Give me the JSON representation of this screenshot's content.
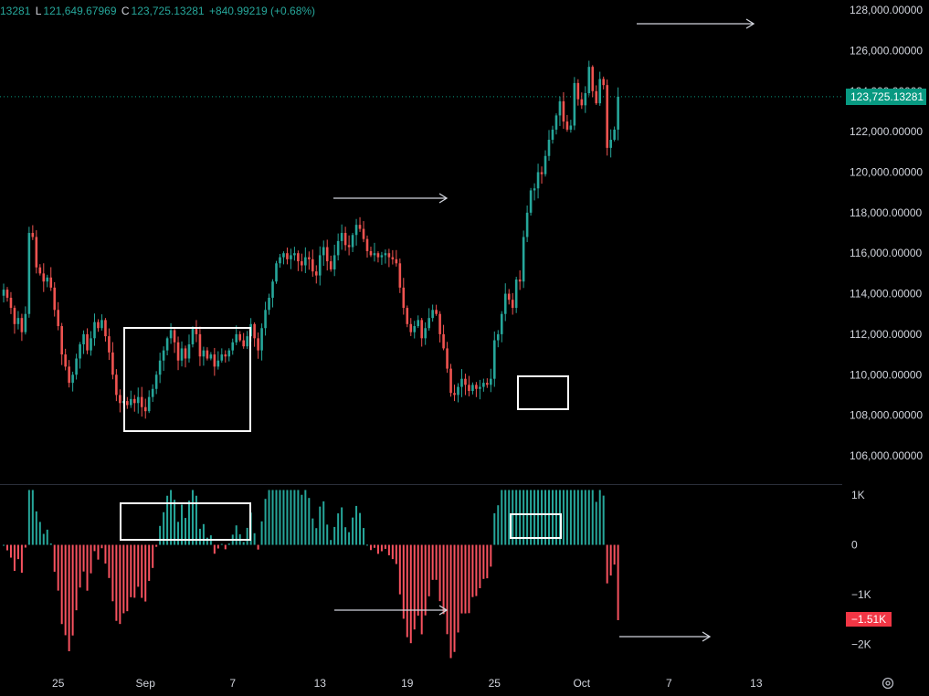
{
  "legend": {
    "open_partial": "13281",
    "low_label": "L",
    "low": "121,649.67969",
    "close_label": "C",
    "close": "123,725.13281",
    "change": "+840.99219 (+0.68%)"
  },
  "last_price_label": "123,725.13281",
  "oscillator_last_label": "−1.51K",
  "colors": {
    "up": "#26a69a",
    "down": "#ef5350",
    "osc_up": "#26a69a",
    "osc_down": "#f7525f",
    "price_tag": "#089981",
    "osc_tag": "#f23645"
  },
  "icons": {
    "settings": "gear-icon"
  },
  "chart_data": [
    {
      "type": "candlestick",
      "title": "",
      "ylim": [
        104600,
        128500
      ],
      "y_ticks": [
        106000,
        108000,
        110000,
        112000,
        114000,
        116000,
        118000,
        120000,
        122000,
        124000,
        126000,
        128000
      ],
      "y_tick_labels": [
        "106,000.00000",
        "108,000.00000",
        "110,000.00000",
        "112,000.00000",
        "114,000.00000",
        "116,000.00000",
        "118,000.00000",
        "120,000.00000",
        "122,000.00000",
        "124,000.00000",
        "126,000.00000",
        "128,000.00000"
      ],
      "x_tick_labels": [
        "25",
        "Sep",
        "7",
        "13",
        "19",
        "25",
        "Oct",
        "7",
        "13"
      ],
      "x_tick_index": [
        15,
        39,
        63,
        87,
        111,
        135,
        159,
        183,
        207
      ],
      "last_price": 123725.13,
      "closes": [
        114200,
        113800,
        113300,
        112500,
        112800,
        112100,
        113000,
        117000,
        116800,
        115300,
        115000,
        114600,
        114800,
        114300,
        113200,
        112400,
        111000,
        110400,
        109600,
        110000,
        110800,
        111500,
        112000,
        111200,
        111800,
        112600,
        112300,
        112700,
        111900,
        111100,
        110000,
        109000,
        108600,
        108700,
        108500,
        108800,
        108600,
        108900,
        108400,
        108200,
        108900,
        109300,
        110000,
        110700,
        111200,
        111800,
        112200,
        111600,
        110700,
        111300,
        110800,
        111500,
        112300,
        112000,
        110900,
        111200,
        110800,
        111000,
        110400,
        110700,
        111000,
        110900,
        111200,
        111600,
        112000,
        111700,
        111400,
        111900,
        112500,
        111800,
        111200,
        112300,
        113200,
        113800,
        114600,
        115500,
        115800,
        116000,
        115700,
        115900,
        116000,
        115600,
        115400,
        115800,
        115700,
        115100,
        114900,
        115900,
        116300,
        115600,
        115200,
        115900,
        116600,
        117000,
        116400,
        116300,
        116900,
        117400,
        117200,
        116700,
        116100,
        115900,
        116000,
        115800,
        115900,
        116000,
        115800,
        115700,
        115500,
        114300,
        113300,
        112500,
        112100,
        112400,
        112700,
        111800,
        112300,
        112800,
        113200,
        113000,
        112000,
        111300,
        110300,
        109100,
        109000,
        109400,
        109800,
        109500,
        109200,
        109500,
        109300,
        109400,
        109600,
        109500,
        109800,
        111700,
        112000,
        113000,
        114000,
        113700,
        113300,
        114700,
        114600,
        116800,
        118000,
        119100,
        119200,
        120000,
        119900,
        120800,
        121600,
        122100,
        122800,
        123500,
        122500,
        122100,
        122300,
        124400,
        123600,
        123300,
        123900,
        125200,
        124000,
        123400,
        124600,
        124300,
        121200,
        121600,
        122100,
        123725
      ],
      "oscillator": {
        "ylim": [
          -2500,
          1200
        ],
        "y_ticks": [
          1000,
          0,
          -1000,
          -2000
        ],
        "y_tick_labels": [
          "1K",
          "0",
          "−1K",
          "−2K"
        ],
        "last_value": -1510
      }
    }
  ],
  "annotations": [
    {
      "type": "box",
      "pane": "price",
      "label": ""
    },
    {
      "type": "box",
      "pane": "price",
      "label": ""
    },
    {
      "type": "box",
      "pane": "oscillator",
      "label": ""
    },
    {
      "type": "box",
      "pane": "oscillator",
      "label": ""
    },
    {
      "type": "arrow",
      "pane": "price",
      "label": ""
    },
    {
      "type": "arrow",
      "pane": "price",
      "label": ""
    },
    {
      "type": "arrow",
      "pane": "oscillator",
      "label": ""
    },
    {
      "type": "arrow",
      "pane": "oscillator",
      "label": ""
    }
  ]
}
